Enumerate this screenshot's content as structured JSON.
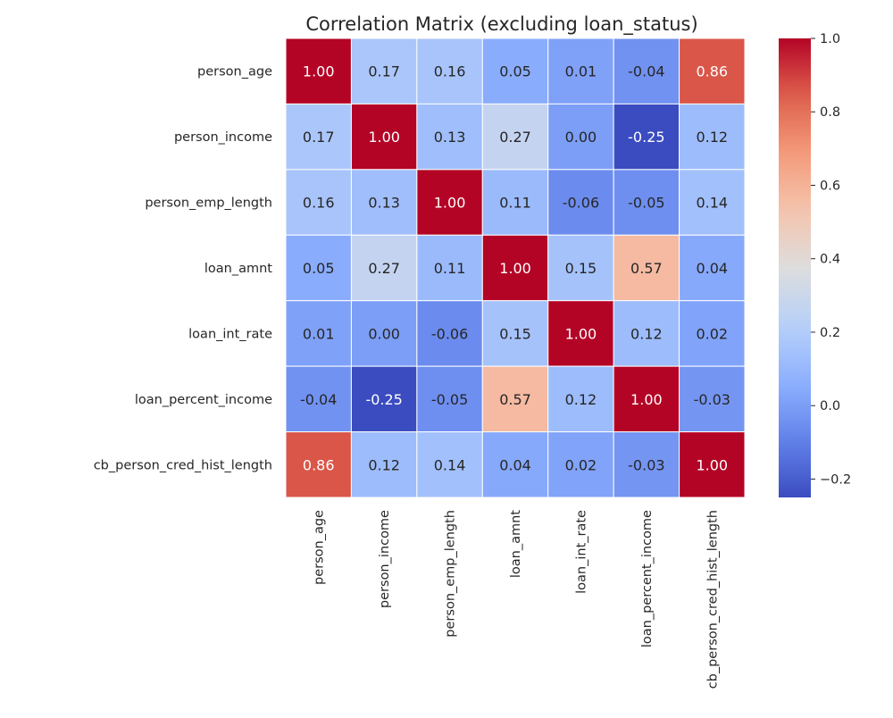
{
  "chart_data": {
    "type": "heatmap",
    "title": "Correlation Matrix (excluding loan_status)",
    "xlabel": "",
    "ylabel": "",
    "row_labels": [
      "person_age",
      "person_income",
      "person_emp_length",
      "loan_amnt",
      "loan_int_rate",
      "loan_percent_income",
      "cb_person_cred_hist_length"
    ],
    "col_labels": [
      "person_age",
      "person_income",
      "person_emp_length",
      "loan_amnt",
      "loan_int_rate",
      "loan_percent_income",
      "cb_person_cred_hist_length"
    ],
    "values": [
      [
        1.0,
        0.17,
        0.16,
        0.05,
        0.01,
        -0.04,
        0.86
      ],
      [
        0.17,
        1.0,
        0.13,
        0.27,
        0.0,
        -0.25,
        0.12
      ],
      [
        0.16,
        0.13,
        1.0,
        0.11,
        -0.06,
        -0.05,
        0.14
      ],
      [
        0.05,
        0.27,
        0.11,
        1.0,
        0.15,
        0.57,
        0.04
      ],
      [
        0.01,
        0.0,
        -0.06,
        0.15,
        1.0,
        0.12,
        0.02
      ],
      [
        -0.04,
        -0.25,
        -0.05,
        0.57,
        0.12,
        1.0,
        -0.03
      ],
      [
        0.86,
        0.12,
        0.14,
        0.04,
        0.02,
        -0.03,
        1.0
      ]
    ],
    "value_format": "0.00",
    "colormap": "coolwarm",
    "color_range": [
      -0.25,
      1.0
    ],
    "colorbar_ticks": [
      "-0.2",
      "0.0",
      "0.2",
      "0.4",
      "0.6",
      "0.8",
      "1.0"
    ],
    "colorbar_tick_values": [
      -0.2,
      0.0,
      0.2,
      0.4,
      0.6,
      0.8,
      1.0
    ],
    "grid_lines": "white",
    "legend": "colorbar-right"
  }
}
